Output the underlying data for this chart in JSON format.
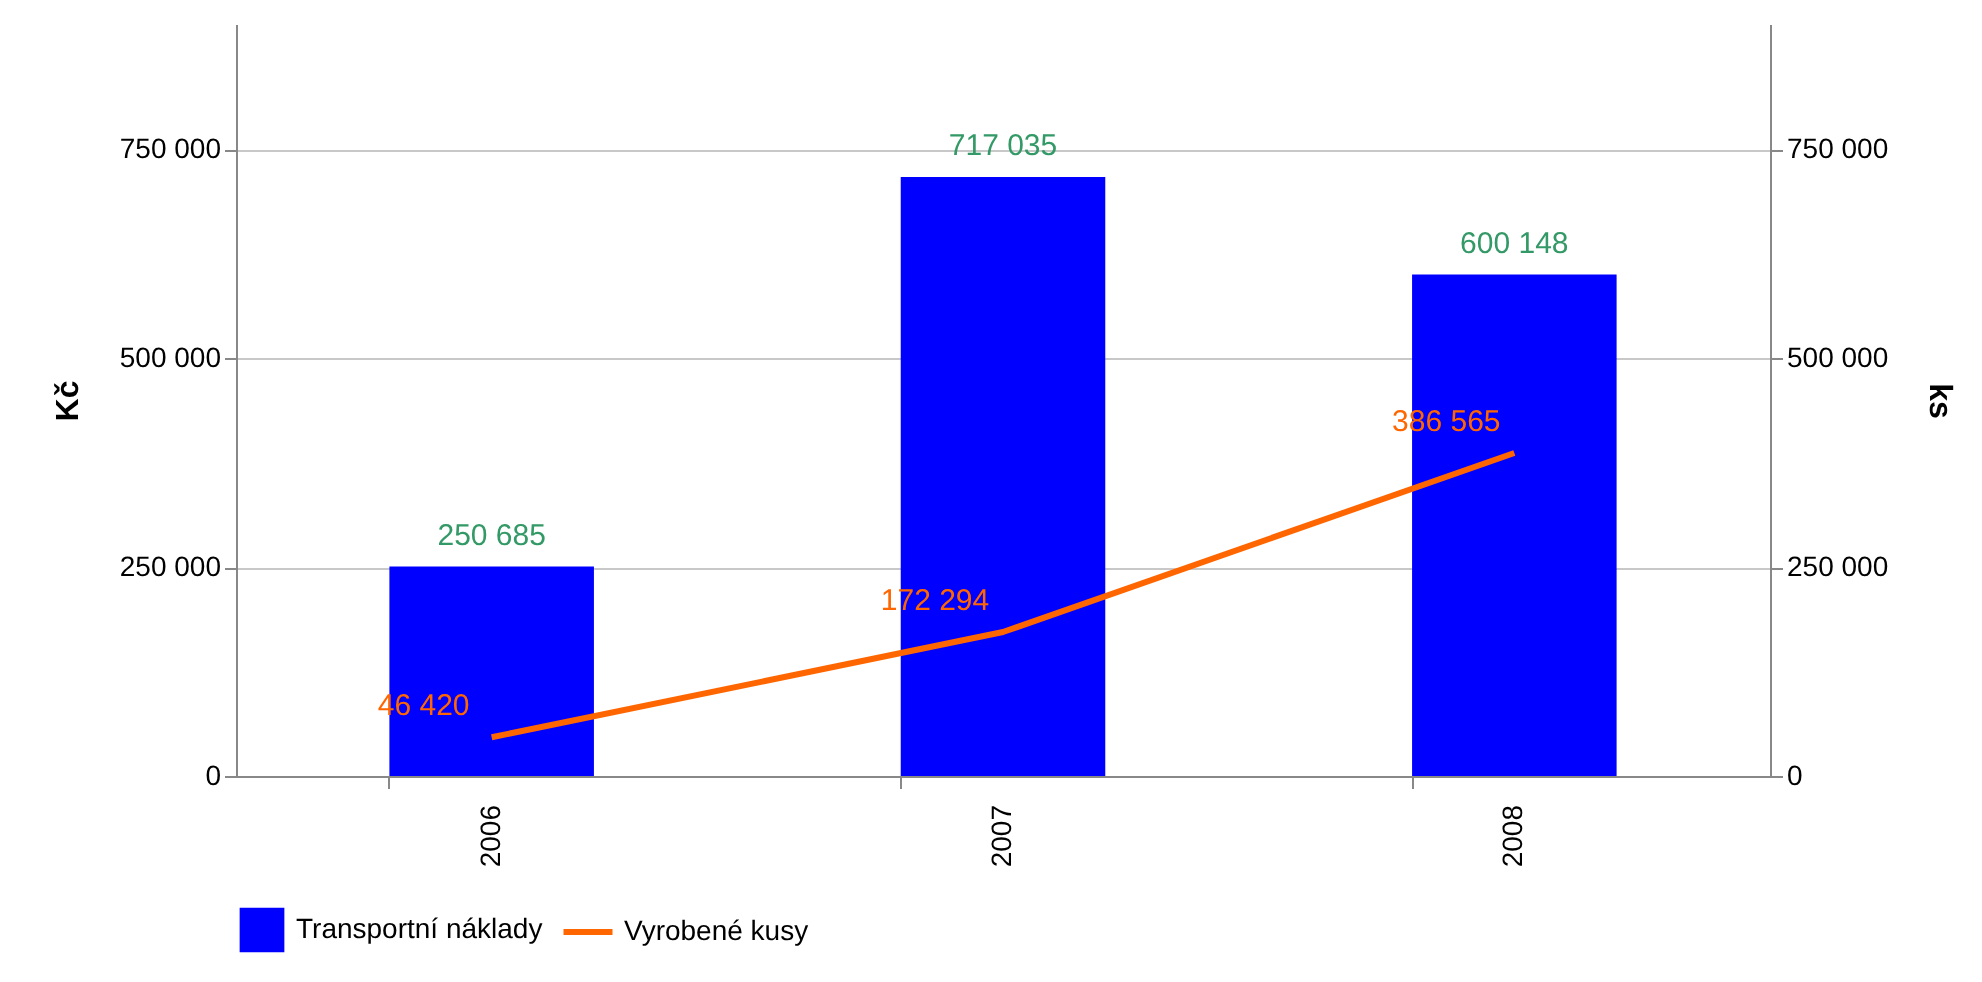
{
  "chart_data": {
    "type": "bar",
    "categories": [
      "2006",
      "2007",
      "2008"
    ],
    "ylabel": "Kč",
    "y2label": "ks",
    "series": [
      {
        "name": "Transportní náklady",
        "color": "#0000ff",
        "values": [
          250685,
          717035,
          600148
        ],
        "value_labels": [
          "250 685",
          "717 035",
          "600 148"
        ]
      },
      {
        "name": "Vyrobené kusy",
        "type": "line",
        "axis": "y2",
        "color": "#ff6600",
        "values": [
          46420,
          172294,
          386565
        ],
        "value_labels": [
          "46 420",
          "172 294",
          "386 565"
        ]
      }
    ],
    "ylim": [
      0,
      900000
    ],
    "yticks": [
      {
        "value": 0,
        "label": "0"
      },
      {
        "value": 250000,
        "label": "250 000"
      },
      {
        "value": 500000,
        "label": "500 000"
      },
      {
        "value": 750000,
        "label": "750 000"
      }
    ],
    "y2lim": [
      0,
      900000
    ],
    "y2ticks": [
      {
        "value": 0,
        "label": "0"
      },
      {
        "value": 250000,
        "label": "250 000"
      },
      {
        "value": 500000,
        "label": "500 000"
      },
      {
        "value": 750000,
        "label": "750 000"
      }
    ],
    "grid": "y",
    "legend": "bottom",
    "marker": "none",
    "line_style": "solid"
  }
}
